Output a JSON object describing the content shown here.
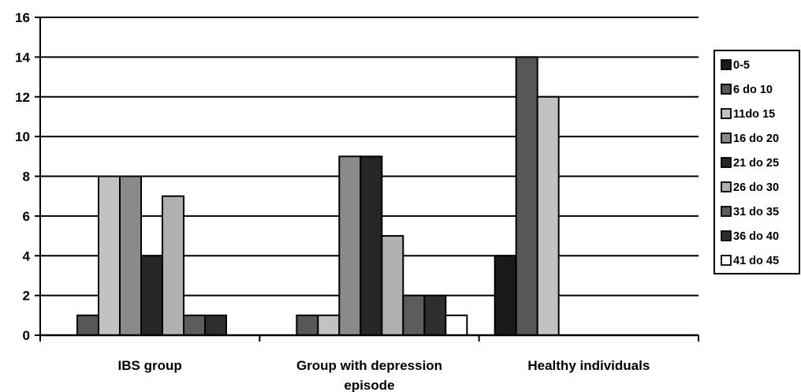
{
  "chart_data": {
    "type": "bar",
    "title": "",
    "xlabel": "",
    "ylabel": "",
    "ylim": [
      0,
      16
    ],
    "yticks": [
      0,
      2,
      4,
      6,
      8,
      10,
      12,
      14,
      16
    ],
    "grid": true,
    "legend_position": "right",
    "categories": [
      [
        "IBS group"
      ],
      [
        "Group with depression",
        "episode"
      ],
      [
        "Healthy individuals"
      ]
    ],
    "series": [
      {
        "name": "0-5",
        "color": "#1a1a1a",
        "values": [
          0,
          0,
          4
        ]
      },
      {
        "name": "6 do 10",
        "color": "#575757",
        "values": [
          1,
          1,
          14
        ]
      },
      {
        "name": "11do 15",
        "color": "#c2c2c2",
        "values": [
          8,
          1,
          12
        ]
      },
      {
        "name": "16 do 20",
        "color": "#8a8a8a",
        "values": [
          8,
          9,
          0
        ]
      },
      {
        "name": "21 do 25",
        "color": "#262626",
        "values": [
          4,
          9,
          0
        ]
      },
      {
        "name": "26 do 30",
        "color": "#b0b0b0",
        "values": [
          7,
          5,
          0
        ]
      },
      {
        "name": "31 do 35",
        "color": "#5c5c5c",
        "values": [
          1,
          2,
          0
        ]
      },
      {
        "name": "36 do 40",
        "color": "#2e2e2e",
        "values": [
          1,
          2,
          0
        ]
      },
      {
        "name": "41 do 45",
        "color": "#ffffff",
        "values": [
          0,
          1,
          0
        ]
      }
    ]
  }
}
